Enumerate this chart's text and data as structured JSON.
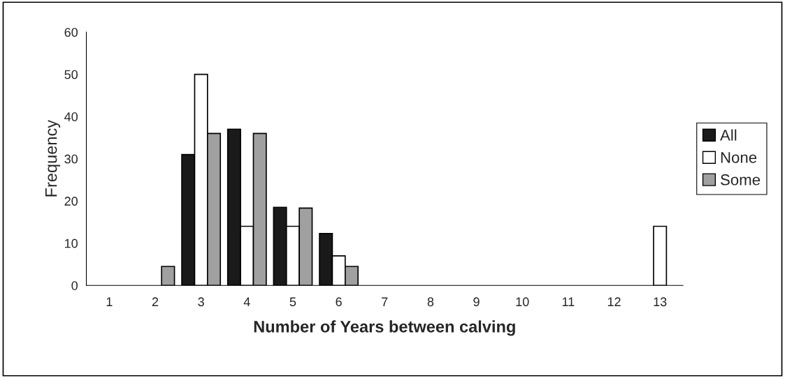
{
  "chart_data": {
    "type": "bar",
    "xlabel": "Number of Years between calving",
    "ylabel": "Frequency",
    "categories": [
      "1",
      "2",
      "3",
      "4",
      "5",
      "6",
      "7",
      "8",
      "9",
      "10",
      "11",
      "12",
      "13"
    ],
    "series": [
      {
        "name": "All",
        "color": "#1a1a1a",
        "values": [
          0,
          0,
          31,
          37,
          18.5,
          12.3,
          0,
          0,
          0,
          0,
          0,
          0,
          0
        ]
      },
      {
        "name": "None",
        "color": "#ffffff",
        "values": [
          0,
          0,
          50,
          14,
          14,
          7,
          0,
          0,
          0,
          0,
          0,
          0,
          14
        ]
      },
      {
        "name": "Some",
        "color": "#a0a0a0",
        "values": [
          0,
          4.5,
          36,
          36,
          18.3,
          4.5,
          0,
          0,
          0,
          0,
          0,
          0,
          0
        ]
      }
    ],
    "ylim": [
      0,
      60
    ],
    "yticks": [
      0,
      10,
      20,
      30,
      40,
      50,
      60
    ],
    "grid": false,
    "legend": "right"
  }
}
